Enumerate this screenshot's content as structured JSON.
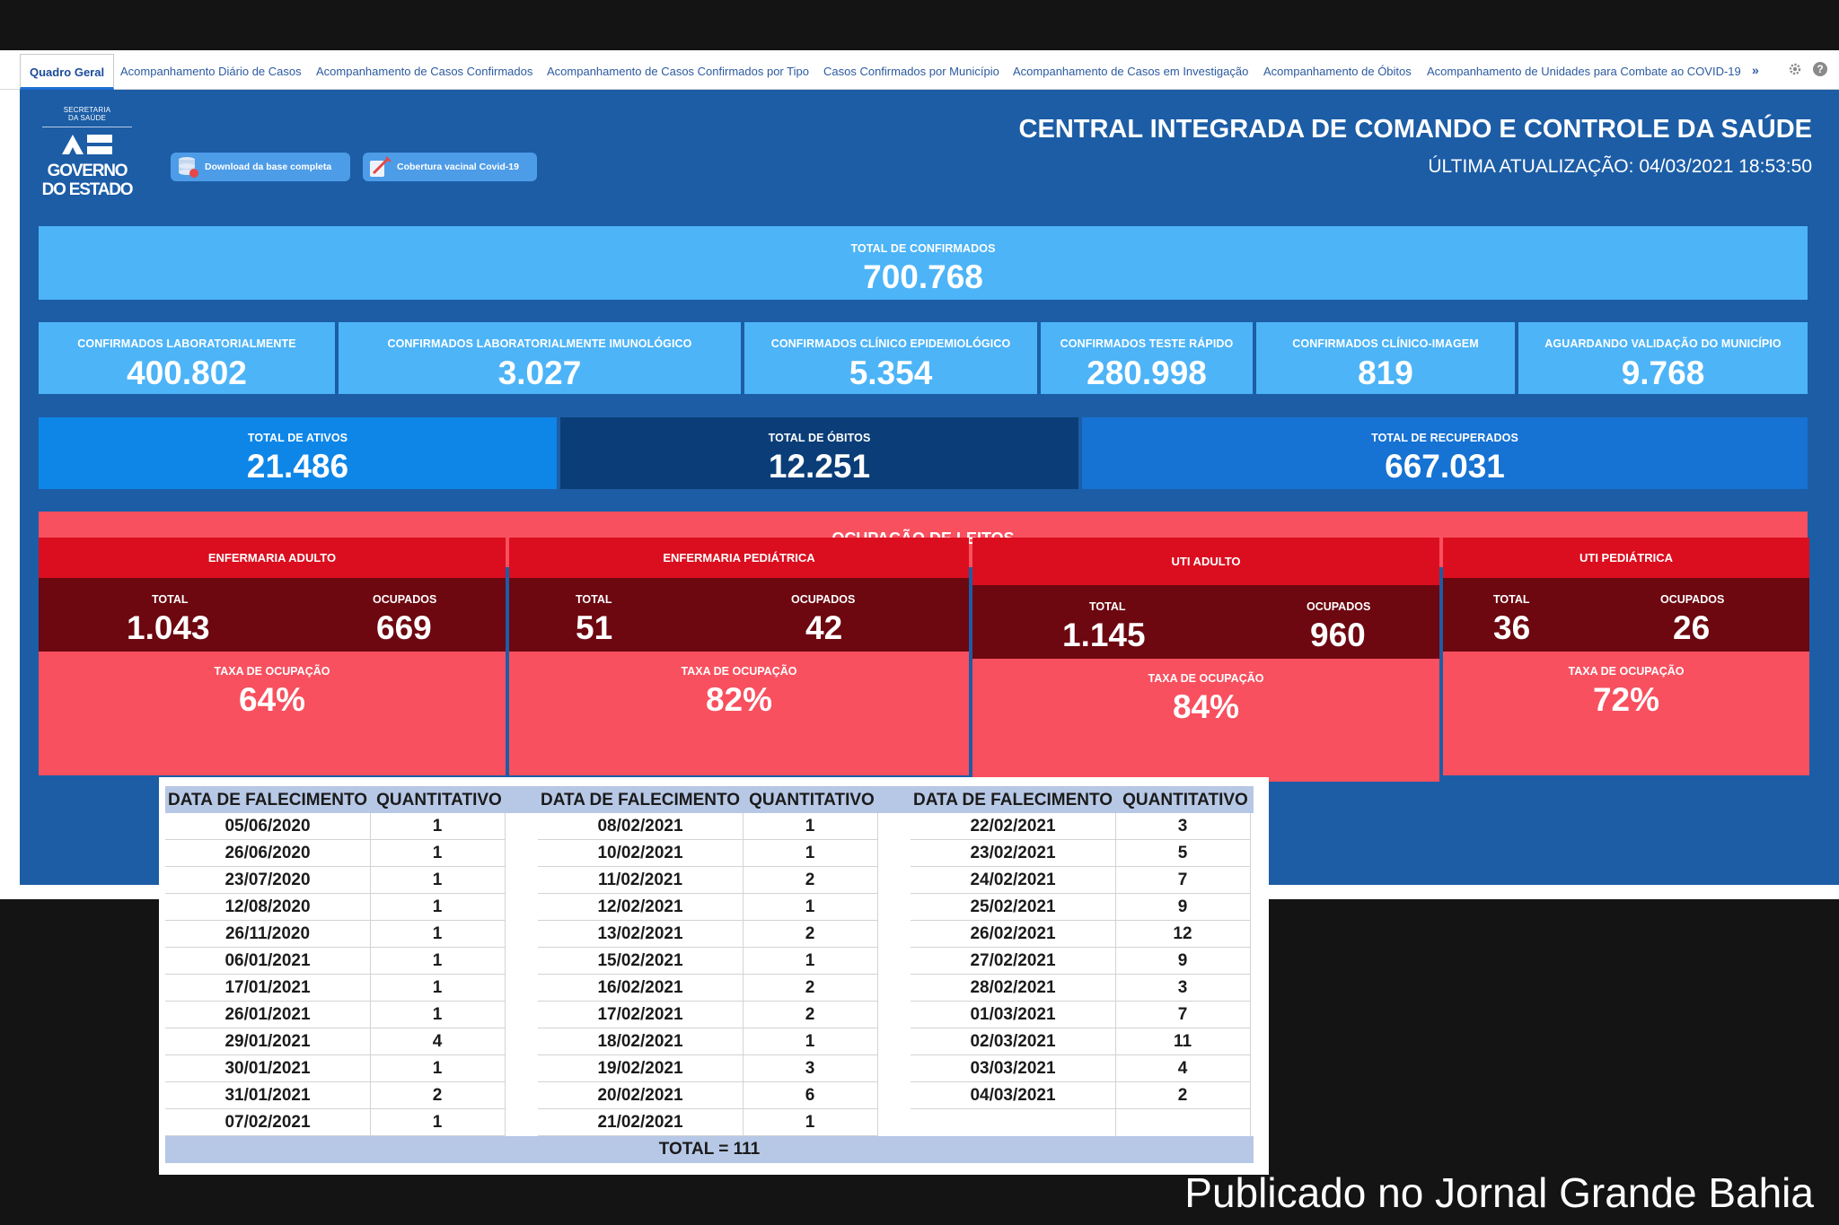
{
  "tabs": [
    "Quadro Geral",
    "Acompanhamento Diário de Casos",
    "Acompanhamento de Casos Confirmados",
    "Acompanhamento de Casos Confirmados por Tipo",
    "Casos Confirmados por Município",
    "Acompanhamento de Casos em Investigação",
    "Acompanhamento de Óbitos",
    "Acompanhamento de Unidades para Combate ao COVID-19"
  ],
  "tab_more": "»",
  "logo": {
    "sec_line1": "SECRETARIA",
    "sec_line2": "DA SAÚDE",
    "gov_line1": "GOVERNO",
    "gov_line2": "DO ESTADO"
  },
  "buttons": {
    "download": "Download da base completa",
    "vaccine": "Cobertura vacinal Covid-19"
  },
  "header": {
    "title": "CENTRAL INTEGRADA DE COMANDO E CONTROLE DA SAÚDE",
    "updated": "ÚLTIMA ATUALIZAÇÃO: 04/03/2021 18:53:50"
  },
  "total_confirmed": {
    "label": "TOTAL DE CONFIRMADOS",
    "value": "700.768"
  },
  "confirmed_breakdown": [
    {
      "label": "CONFIRMADOS LABORATORIALMENTE",
      "value": "400.802"
    },
    {
      "label": "CONFIRMADOS LABORATORIALMENTE IMUNOLÓGICO",
      "value": "3.027"
    },
    {
      "label": "CONFIRMADOS CLÍNICO EPIDEMIOLÓGICO",
      "value": "5.354"
    },
    {
      "label": "CONFIRMADOS TESTE RÁPIDO",
      "value": "280.998"
    },
    {
      "label": "CONFIRMADOS CLÍNICO-IMAGEM",
      "value": "819"
    },
    {
      "label": "AGUARDANDO VALIDAÇÃO DO MUNICÍPIO",
      "value": "9.768"
    }
  ],
  "status_totals": [
    {
      "label": "TOTAL DE ATIVOS",
      "value": "21.486",
      "color": "#0e86e8"
    },
    {
      "label": "TOTAL DE ÓBITOS",
      "value": "12.251",
      "color": "#0b3e78"
    },
    {
      "label": "TOTAL DE RECUPERADOS",
      "value": "667.031",
      "color": "#1672d3"
    }
  ],
  "beds_banner": "OCUPAÇÃO DE LEITOS",
  "beds": [
    {
      "name": "ENFERMARIA ADULTO",
      "total_label": "TOTAL",
      "total": "1.043",
      "occ_label": "OCUPADOS",
      "occupied": "669",
      "rate_label": "TAXA DE OCUPAÇÃO",
      "rate": "64%"
    },
    {
      "name": "ENFERMARIA PEDIÁTRICA",
      "total_label": "TOTAL",
      "total": "51",
      "occ_label": "OCUPADOS",
      "occupied": "42",
      "rate_label": "TAXA DE OCUPAÇÃO",
      "rate": "82%"
    },
    {
      "name": "UTI ADULTO",
      "total_label": "TOTAL",
      "total": "1.145",
      "occ_label": "OCUPADOS",
      "occupied": "960",
      "rate_label": "TAXA DE OCUPAÇÃO",
      "rate": "84%"
    },
    {
      "name": "UTI PEDIÁTRICA",
      "total_label": "TOTAL",
      "total": "36",
      "occ_label": "OCUPADOS",
      "occupied": "26",
      "rate_label": "TAXA DE OCUPAÇÃO",
      "rate": "72%"
    }
  ],
  "deaths_table": {
    "col_date": "DATA DE FALECIMENTO",
    "col_qty": "QUANTITATIVO",
    "groups": [
      [
        [
          "05/06/2020",
          "1"
        ],
        [
          "26/06/2020",
          "1"
        ],
        [
          "23/07/2020",
          "1"
        ],
        [
          "12/08/2020",
          "1"
        ],
        [
          "26/11/2020",
          "1"
        ],
        [
          "06/01/2021",
          "1"
        ],
        [
          "17/01/2021",
          "1"
        ],
        [
          "26/01/2021",
          "1"
        ],
        [
          "29/01/2021",
          "4"
        ],
        [
          "30/01/2021",
          "1"
        ],
        [
          "31/01/2021",
          "2"
        ],
        [
          "07/02/2021",
          "1"
        ]
      ],
      [
        [
          "08/02/2021",
          "1"
        ],
        [
          "10/02/2021",
          "1"
        ],
        [
          "11/02/2021",
          "2"
        ],
        [
          "12/02/2021",
          "1"
        ],
        [
          "13/02/2021",
          "2"
        ],
        [
          "15/02/2021",
          "1"
        ],
        [
          "16/02/2021",
          "2"
        ],
        [
          "17/02/2021",
          "2"
        ],
        [
          "18/02/2021",
          "1"
        ],
        [
          "19/02/2021",
          "3"
        ],
        [
          "20/02/2021",
          "6"
        ],
        [
          "21/02/2021",
          "1"
        ]
      ],
      [
        [
          "22/02/2021",
          "3"
        ],
        [
          "23/02/2021",
          "5"
        ],
        [
          "24/02/2021",
          "7"
        ],
        [
          "25/02/2021",
          "9"
        ],
        [
          "26/02/2021",
          "12"
        ],
        [
          "27/02/2021",
          "9"
        ],
        [
          "28/02/2021",
          "3"
        ],
        [
          "01/03/2021",
          "7"
        ],
        [
          "02/03/2021",
          "11"
        ],
        [
          "03/03/2021",
          "4"
        ],
        [
          "04/03/2021",
          "2"
        ]
      ]
    ],
    "total": "TOTAL = 111"
  },
  "credit": "Publicado no Jornal Grande Bahia"
}
